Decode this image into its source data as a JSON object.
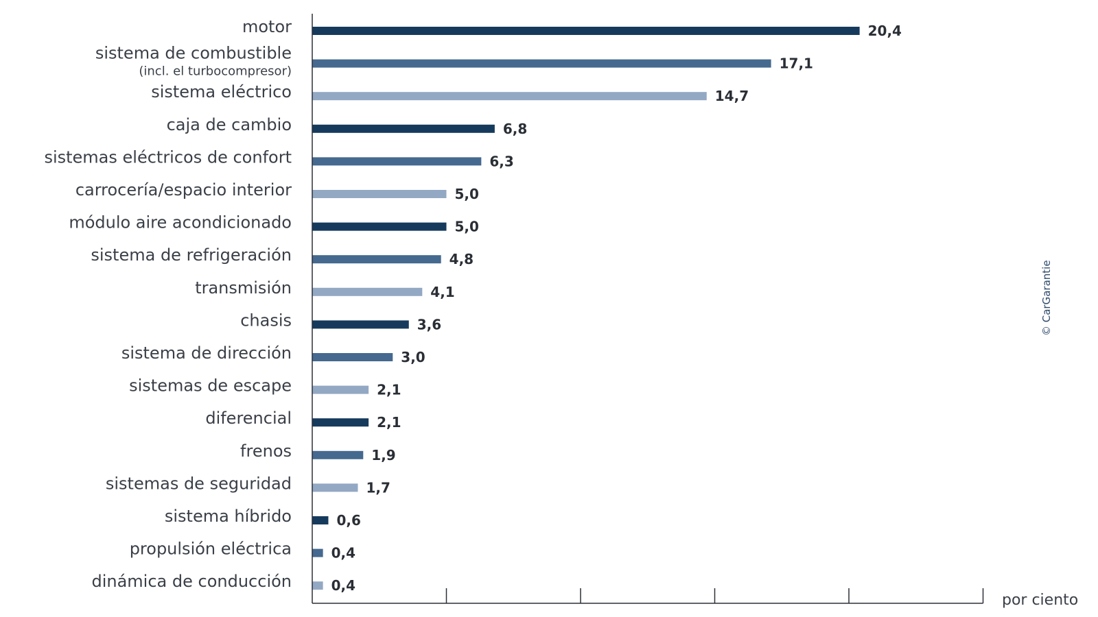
{
  "chart_data": {
    "type": "bar",
    "orientation": "horizontal",
    "categories": [
      "motor",
      "sistema de combustible",
      "sistema eléctrico",
      "caja de cambio",
      "sistemas eléctricos de confort",
      "carrocería/espacio interior",
      "módulo aire acondicionado",
      "sistema de refrigeración",
      "transmisión",
      "chasis",
      "sistema de dirección",
      "sistemas de escape",
      "diferencial",
      "frenos",
      "sistemas de seguridad",
      "sistema híbrido",
      "propulsión eléctrica",
      "dinámica de conducción"
    ],
    "category_sublabels": [
      "",
      "(incl. el turbocompresor)",
      "",
      "",
      "",
      "",
      "",
      "",
      "",
      "",
      "",
      "",
      "",
      "",
      "",
      "",
      "",
      ""
    ],
    "values": [
      20.4,
      17.1,
      14.7,
      6.8,
      6.3,
      5.0,
      5.0,
      4.8,
      4.1,
      3.6,
      3.0,
      2.1,
      2.1,
      1.9,
      1.7,
      0.6,
      0.4,
      0.4
    ],
    "value_labels": [
      "20,4",
      "17,1",
      "14,7",
      "6,8",
      "6,3",
      "5,0",
      "5,0",
      "4,8",
      "4,1",
      "3,6",
      "3,0",
      "2,1",
      "2,1",
      "1,9",
      "1,7",
      "0,6",
      "0,4",
      "0,4"
    ],
    "bar_colors": [
      "#163a5c",
      "#45698f",
      "#93a8c3"
    ],
    "x_unit_label": "por ciento",
    "xlim": [
      0,
      25
    ],
    "x_ticks": [
      5,
      10,
      15,
      20,
      25
    ],
    "tick_labels_shown": false,
    "grid": false,
    "legend": "none",
    "title": "",
    "xlabel": "",
    "ylabel": ""
  },
  "copyright": "© CarGarantie"
}
